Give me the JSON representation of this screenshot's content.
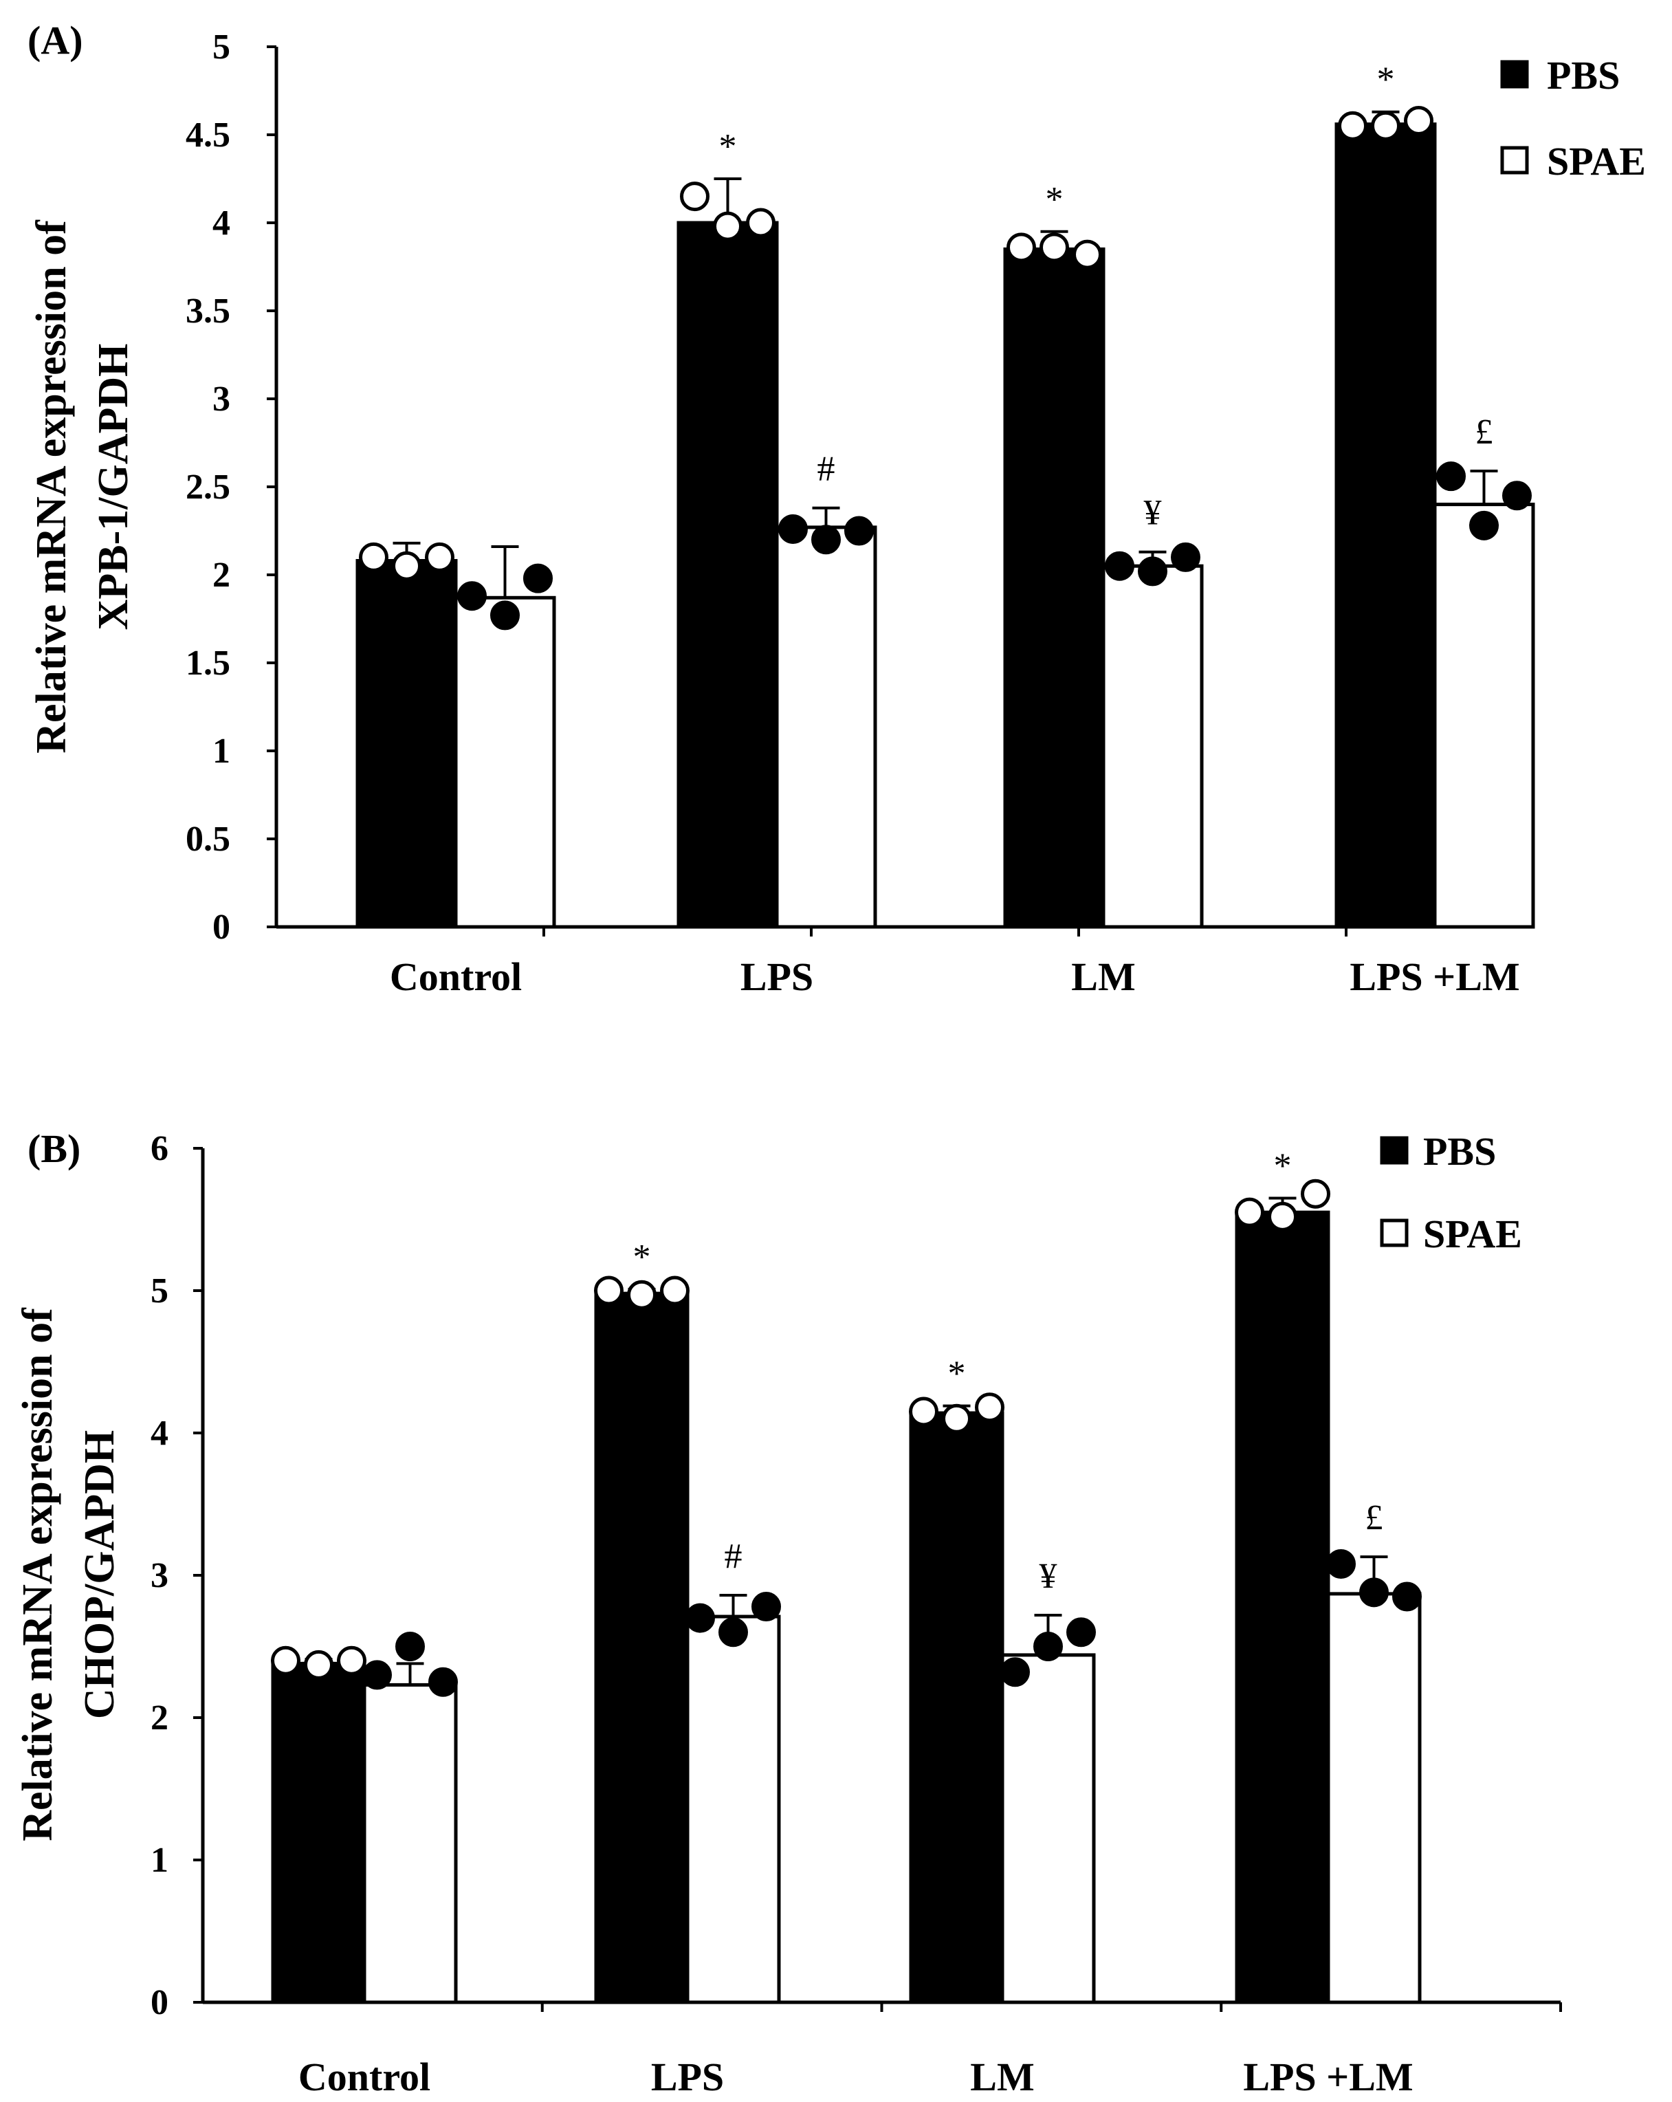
{
  "chart_data": [
    {
      "panel": "(A)",
      "type": "bar",
      "ylabel_line1": "Relative mRNA expression of",
      "ylabel_line2": "XPB-1/GAPDH",
      "ylim": [
        0,
        5
      ],
      "yticks": [
        0,
        0.5,
        1,
        1.5,
        2,
        2.5,
        3,
        3.5,
        4,
        4.5,
        5
      ],
      "categories": [
        "Control",
        "LPS",
        "LM",
        "LPS +LM"
      ],
      "series": [
        {
          "name": "PBS",
          "fill": "#000000",
          "point_fill": "#ffffff",
          "values": [
            2.08,
            4.0,
            3.85,
            4.56
          ],
          "errors": [
            0.1,
            0.25,
            0.1,
            0.07
          ],
          "points": [
            [
              2.1,
              2.05,
              2.1
            ],
            [
              4.15,
              3.98,
              4.0
            ],
            [
              3.86,
              3.86,
              3.82
            ],
            [
              4.55,
              4.55,
              4.58
            ]
          ],
          "annotations": [
            "",
            "*",
            "*",
            "*"
          ]
        },
        {
          "name": "SPAE",
          "fill": "#ffffff",
          "point_fill": "#000000",
          "values": [
            1.87,
            2.27,
            2.05,
            2.4
          ],
          "errors": [
            0.29,
            0.11,
            0.08,
            0.19
          ],
          "points": [
            [
              1.88,
              1.77,
              1.98
            ],
            [
              2.26,
              2.2,
              2.25
            ],
            [
              2.05,
              2.02,
              2.1
            ],
            [
              2.56,
              2.28,
              2.45
            ]
          ],
          "annotations": [
            "",
            "#",
            "¥",
            "£"
          ]
        }
      ],
      "legend": [
        "PBS",
        "SPAE"
      ]
    },
    {
      "panel": "(B)",
      "type": "bar",
      "ylabel_line1": "Relative mRNA expression of",
      "ylabel_line2": "CHOP/GAPDH",
      "ylim": [
        0,
        6
      ],
      "yticks": [
        0,
        1,
        2,
        3,
        4,
        5,
        6
      ],
      "categories": [
        "Control",
        "LPS",
        "LM",
        "LPS +LM"
      ],
      "series": [
        {
          "name": "PBS",
          "fill": "#000000",
          "point_fill": "#ffffff",
          "values": [
            2.38,
            4.98,
            4.14,
            5.55
          ],
          "errors": [
            0.03,
            0.03,
            0.05,
            0.1
          ],
          "points": [
            [
              2.4,
              2.37,
              2.4
            ],
            [
              5.0,
              4.97,
              5.0
            ],
            [
              4.15,
              4.1,
              4.18
            ],
            [
              5.55,
              5.52,
              5.68
            ]
          ],
          "annotations": [
            "",
            "*",
            "*",
            "*"
          ]
        },
        {
          "name": "SPAE",
          "fill": "#ffffff",
          "point_fill": "#000000",
          "values": [
            2.23,
            2.71,
            2.44,
            2.87
          ],
          "errors": [
            0.15,
            0.15,
            0.28,
            0.26
          ],
          "points": [
            [
              2.3,
              2.5,
              2.25
            ],
            [
              2.7,
              2.6,
              2.78
            ],
            [
              2.32,
              2.5,
              2.6
            ],
            [
              3.08,
              2.88,
              2.85
            ]
          ],
          "annotations": [
            "",
            "#",
            "¥",
            "£"
          ]
        }
      ],
      "legend": [
        "PBS",
        "SPAE"
      ]
    }
  ]
}
